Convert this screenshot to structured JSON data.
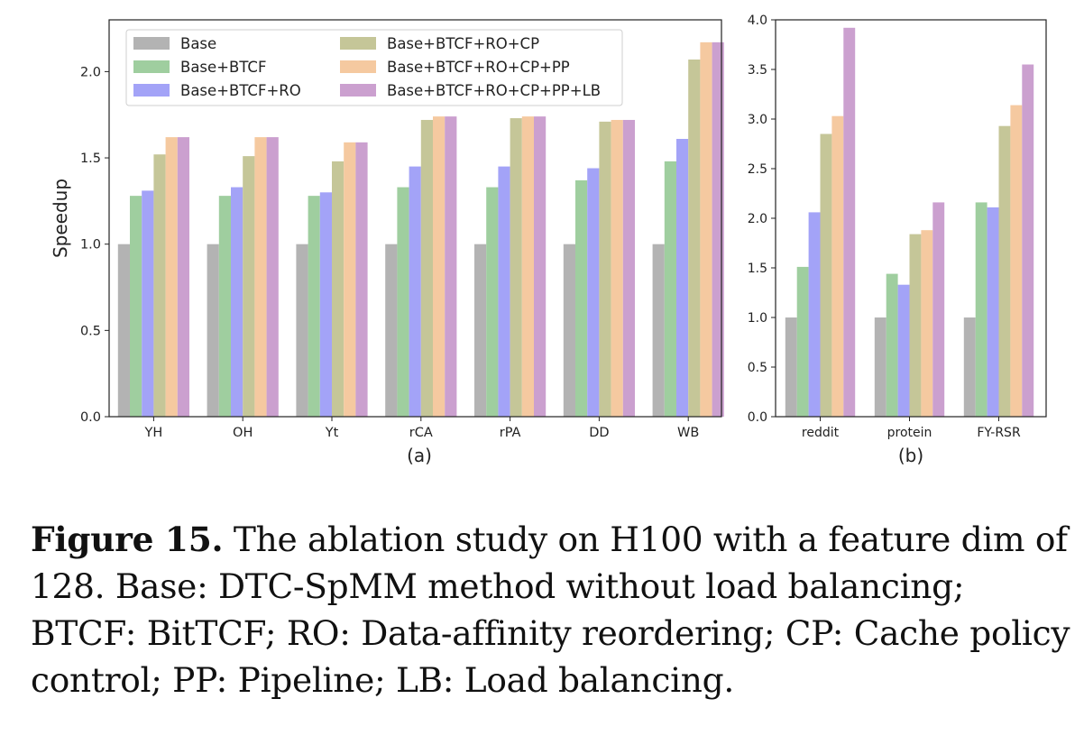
{
  "chart_data": [
    {
      "type": "bar",
      "sublabel": "(a)",
      "ylabel": "Speedup",
      "ylim": [
        0,
        2.3
      ],
      "yticks": [
        "0.0",
        "0.5",
        "1.0",
        "1.5",
        "2.0"
      ],
      "categories": [
        "YH",
        "OH",
        "Yt",
        "rCA",
        "rPA",
        "DD",
        "WB"
      ],
      "legend_location": "upper-left",
      "series": [
        {
          "name": "Base",
          "values": [
            1.0,
            1.0,
            1.0,
            1.0,
            1.0,
            1.0,
            1.0
          ]
        },
        {
          "name": "Base+BTCF",
          "values": [
            1.28,
            1.28,
            1.28,
            1.33,
            1.33,
            1.37,
            1.48
          ]
        },
        {
          "name": "Base+BTCF+RO",
          "values": [
            1.31,
            1.33,
            1.3,
            1.45,
            1.45,
            1.44,
            1.61
          ]
        },
        {
          "name": "Base+BTCF+RO+CP",
          "values": [
            1.52,
            1.51,
            1.48,
            1.72,
            1.73,
            1.71,
            2.07
          ]
        },
        {
          "name": "Base+BTCF+RO+CP+PP",
          "values": [
            1.62,
            1.62,
            1.59,
            1.74,
            1.74,
            1.72,
            2.17
          ]
        },
        {
          "name": "Base+BTCF+RO+CP+PP+LB",
          "values": [
            1.62,
            1.62,
            1.59,
            1.74,
            1.74,
            1.72,
            2.17
          ]
        }
      ]
    },
    {
      "type": "bar",
      "sublabel": "(b)",
      "ylim": [
        0,
        4.0
      ],
      "yticks": [
        "0.0",
        "0.5",
        "1.0",
        "1.5",
        "2.0",
        "2.5",
        "3.0",
        "3.5",
        "4.0"
      ],
      "categories": [
        "reddit",
        "protein",
        "FY-RSR"
      ],
      "series": [
        {
          "name": "Base",
          "values": [
            1.0,
            1.0,
            1.0
          ]
        },
        {
          "name": "Base+BTCF",
          "values": [
            1.51,
            1.44,
            2.16
          ]
        },
        {
          "name": "Base+BTCF+RO",
          "values": [
            2.06,
            1.33,
            2.11
          ]
        },
        {
          "name": "Base+BTCF+RO+CP",
          "values": [
            2.85,
            1.84,
            2.93
          ]
        },
        {
          "name": "Base+BTCF+RO+CP+PP",
          "values": [
            3.03,
            1.88,
            3.14
          ]
        },
        {
          "name": "Base+BTCF+RO+CP+PP+LB",
          "values": [
            3.92,
            2.16,
            3.55
          ]
        }
      ]
    }
  ],
  "colors": {
    "Base": "#b3b3b3",
    "Base+BTCF": "#9fce9f",
    "Base+BTCF+RO": "#a3a3f7",
    "Base+BTCF+RO+CP": "#c5c698",
    "Base+BTCF+RO+CP+PP": "#f5c9a0",
    "Base+BTCF+RO+CP+PP+LB": "#cba0cf"
  },
  "caption": {
    "label": "Figure 15.",
    "text": " The ablation study on H100 with a feature dim of 128. Base: DTC-SpMM method without load balancing; BTCF: BitTCF; RO: Data-affinity reordering; CP: Cache policy control; PP: Pipeline; LB: Load balancing."
  }
}
